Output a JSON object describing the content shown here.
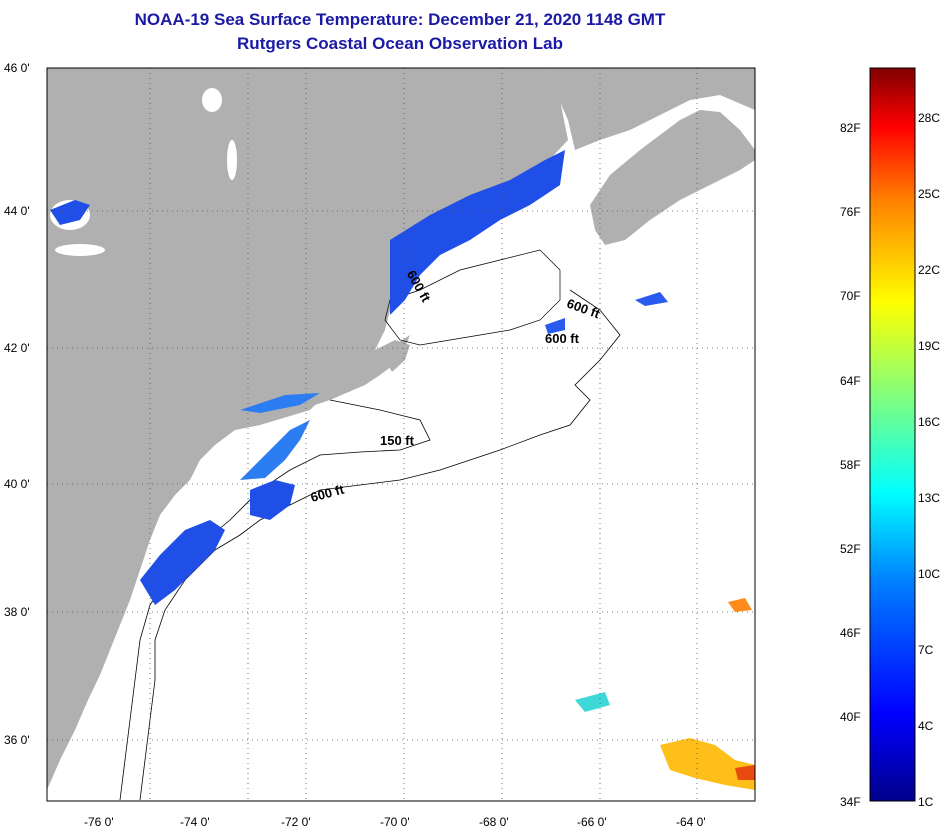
{
  "title": "NOAA-19 Sea Surface Temperature:  December 21, 2020 1148 GMT",
  "subtitle": "Rutgers Coastal Ocean Observation Lab",
  "lat_labels": [
    "46 0'",
    "44 0'",
    "42 0'",
    "40 0'",
    "38 0'",
    "36 0'"
  ],
  "lon_labels": [
    "-76 0'",
    "-74 0'",
    "-72 0'",
    "-70 0'",
    "-68 0'",
    "-66 0'",
    "-64 0'"
  ],
  "contours": [
    "600 ft",
    "600 ft",
    "600 ft",
    "150 ft",
    "600 ft"
  ],
  "colorbar": {
    "fahrenheit": [
      "82F",
      "76F",
      "70F",
      "64F",
      "58F",
      "52F",
      "46F",
      "40F",
      "34F"
    ],
    "celsius": [
      "28C",
      "25C",
      "22C",
      "19C",
      "16C",
      "13C",
      "10C",
      "7C",
      "4C",
      "1C"
    ]
  },
  "colors": {
    "land": "#b0b0b0",
    "title": "#1a1aa6"
  }
}
